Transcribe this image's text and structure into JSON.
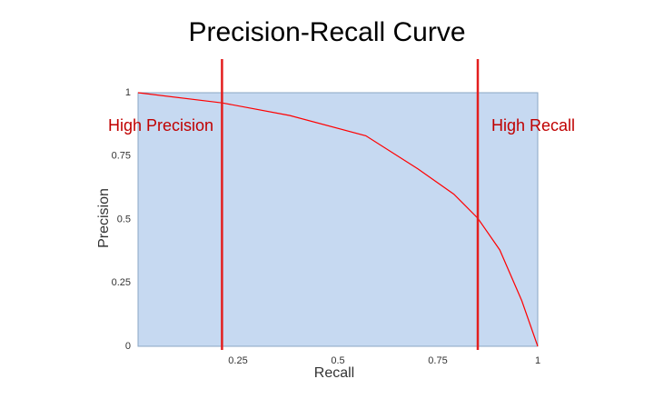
{
  "chart_data": {
    "type": "line",
    "title": "Precision-Recall Curve",
    "x_label": "Recall",
    "y_label": "Precision",
    "x": [
      0,
      0.21,
      0.38,
      0.57,
      0.7,
      0.79,
      0.85,
      0.905,
      0.96,
      1
    ],
    "series": [
      {
        "color": "#ff0000",
        "values": [
          1,
          0.96,
          0.91,
          0.83,
          0.7,
          0.6,
          0.505,
          0.38,
          0.18,
          0
        ]
      }
    ],
    "xlim": [
      0,
      1
    ],
    "ylim": [
      0,
      1
    ],
    "xticks": [
      0.25,
      0.5,
      0.75,
      1
    ],
    "yticks": [
      0,
      0.25,
      0.5,
      0.75,
      1
    ],
    "grid": false,
    "plot_background": "#c6d9f1",
    "vlines": [
      0.21,
      0.85
    ],
    "vline_color": "#e31e1e",
    "annotations": [
      "High Precision",
      "High Recall"
    ],
    "annotation_color": "#c00000"
  }
}
